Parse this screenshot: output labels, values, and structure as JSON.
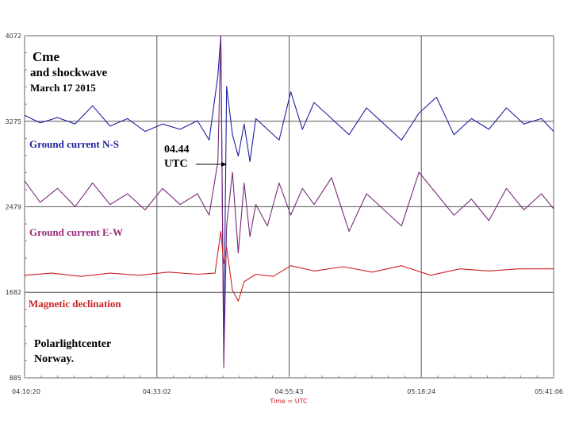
{
  "chart_data": {
    "type": "line",
    "title_lines": [
      "Cme",
      "and shockwave",
      "March 17  2015"
    ],
    "footer_lines": [
      "Polarlightcenter",
      "Norway."
    ],
    "event_label_lines": [
      "04.44",
      "UTC"
    ],
    "event_time": "04:44",
    "xlabel": "Time = UTC",
    "x_ticks": [
      "04:10:20",
      "04:33:02",
      "04:55:43",
      "05:18:24",
      "05:41:06"
    ],
    "y_ticks": [
      "4072",
      "3275",
      "2479",
      "1682",
      "885"
    ],
    "xlim": [
      "04:10:20",
      "05:41:06"
    ],
    "ylim": [
      885,
      4072
    ],
    "grid": true,
    "series": [
      {
        "name": "Ground current N-S",
        "color": "#2020a0",
        "x": [
          "04:10:20",
          "04:13:00",
          "04:16:00",
          "04:19:00",
          "04:22:00",
          "04:25:00",
          "04:28:00",
          "04:31:00",
          "04:34:00",
          "04:37:00",
          "04:40:00",
          "04:42:00",
          "04:43:30",
          "04:44:00",
          "04:44:30",
          "04:45:00",
          "04:46:00",
          "04:47:00",
          "04:48:00",
          "04:49:00",
          "04:50:00",
          "04:52:00",
          "04:54:00",
          "04:56:00",
          "04:58:00",
          "05:00:00",
          "05:03:00",
          "05:06:00",
          "05:09:00",
          "05:12:00",
          "05:15:00",
          "05:18:00",
          "05:21:00",
          "05:24:00",
          "05:27:00",
          "05:30:00",
          "05:33:00",
          "05:36:00",
          "05:39:00",
          "05:41:06"
        ],
        "values": [
          3330,
          3260,
          3310,
          3250,
          3420,
          3230,
          3300,
          3180,
          3250,
          3200,
          3280,
          3100,
          3700,
          4072,
          1150,
          3600,
          3150,
          2950,
          3250,
          2900,
          3300,
          3200,
          3100,
          3550,
          3200,
          3450,
          3300,
          3150,
          3400,
          3250,
          3100,
          3350,
          3500,
          3150,
          3300,
          3200,
          3400,
          3250,
          3300,
          3180
        ]
      },
      {
        "name": "Ground current E-W",
        "color": "#7a2a7a",
        "x": [
          "04:10:20",
          "04:13:00",
          "04:16:00",
          "04:19:00",
          "04:22:00",
          "04:25:00",
          "04:28:00",
          "04:31:00",
          "04:34:00",
          "04:37:00",
          "04:40:00",
          "04:42:00",
          "04:43:30",
          "04:44:00",
          "04:44:30",
          "04:45:00",
          "04:46:00",
          "04:47:00",
          "04:48:00",
          "04:49:00",
          "04:50:00",
          "04:52:00",
          "04:54:00",
          "04:56:00",
          "04:58:00",
          "05:00:00",
          "05:03:00",
          "05:06:00",
          "05:09:00",
          "05:12:00",
          "05:15:00",
          "05:18:00",
          "05:21:00",
          "05:24:00",
          "05:27:00",
          "05:30:00",
          "05:33:00",
          "05:36:00",
          "05:39:00",
          "05:41:06"
        ],
        "values": [
          2720,
          2520,
          2650,
          2480,
          2700,
          2500,
          2600,
          2450,
          2650,
          2500,
          2600,
          2400,
          2900,
          4072,
          980,
          2300,
          2800,
          2050,
          2700,
          2200,
          2500,
          2300,
          2700,
          2400,
          2650,
          2500,
          2750,
          2250,
          2600,
          2450,
          2300,
          2800,
          2600,
          2400,
          2550,
          2350,
          2650,
          2450,
          2600,
          2460
        ]
      },
      {
        "name": "Magnetic declination",
        "color": "#cc2020",
        "x": [
          "04:10:20",
          "04:15:00",
          "04:20:00",
          "04:25:00",
          "04:30:00",
          "04:35:00",
          "04:40:00",
          "04:43:00",
          "04:44:00",
          "04:44:30",
          "04:45:00",
          "04:46:00",
          "04:47:00",
          "04:48:00",
          "04:50:00",
          "04:53:00",
          "04:56:00",
          "05:00:00",
          "05:05:00",
          "05:10:00",
          "05:15:00",
          "05:20:00",
          "05:25:00",
          "05:30:00",
          "05:35:00",
          "05:41:06"
        ],
        "values": [
          1840,
          1860,
          1830,
          1860,
          1840,
          1870,
          1850,
          1860,
          2250,
          1950,
          2100,
          1700,
          1600,
          1780,
          1850,
          1830,
          1930,
          1880,
          1920,
          1870,
          1930,
          1840,
          1900,
          1880,
          1900,
          1900
        ]
      }
    ]
  }
}
